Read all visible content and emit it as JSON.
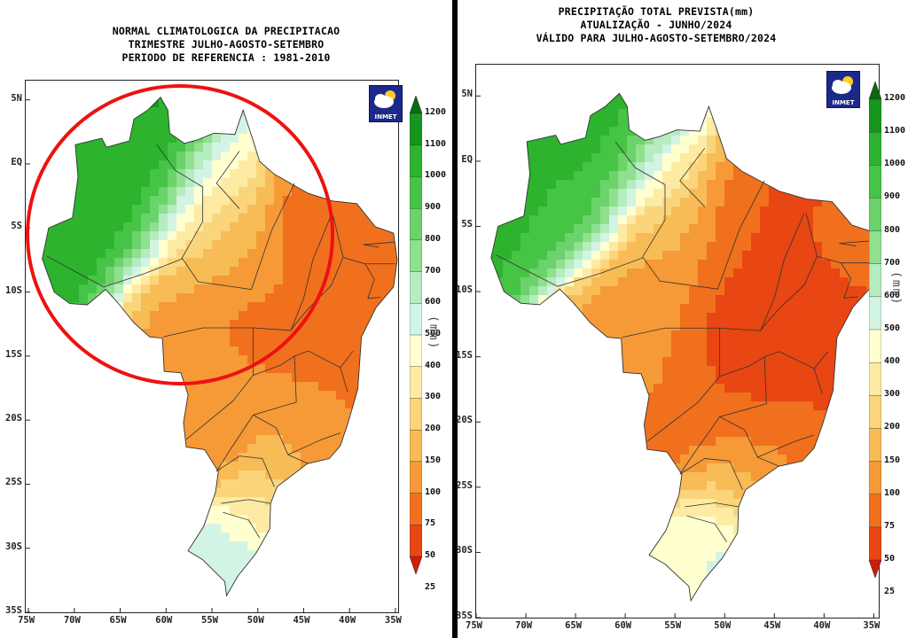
{
  "left_panel": {
    "title_lines": [
      "NORMAL CLIMATOLOGICA DA PRECIPITACAO",
      "TRIMESTRE JULHO-AGOSTO-SETEMBRO",
      "PERIODO DE REFERENCIA : 1981-2010"
    ],
    "logo_text": "INMET",
    "units": "(mm)"
  },
  "right_panel": {
    "title_lines": [
      "PRECIPITAÇÃO TOTAL PREVISTA(mm)",
      "ATUALIZAÇÃO - JUNHO/2024",
      "VÁLIDO PARA JULHO-AGOSTO-SETEMBRO/2024"
    ],
    "logo_text": "INMET",
    "units": "(mm)"
  },
  "lat_labels": [
    "5N",
    "EQ",
    "5S",
    "10S",
    "15S",
    "20S",
    "25S",
    "30S",
    "35S"
  ],
  "lon_labels": [
    "75W",
    "70W",
    "65W",
    "60W",
    "55W",
    "50W",
    "45W",
    "40W",
    "35W"
  ],
  "colorbar": {
    "ticks": [
      "1200",
      "1100",
      "1000",
      "900",
      "800",
      "700",
      "600",
      "500",
      "400",
      "300",
      "200",
      "150",
      "100",
      "75",
      "50",
      "25"
    ],
    "colors": [
      "#0a7a14",
      "#16961e",
      "#2db32d",
      "#46c446",
      "#6bd36b",
      "#8fe08f",
      "#b5ecc0",
      "#d2f4e4",
      "#ffffd0",
      "#fdeaa3",
      "#fbd57c",
      "#f8bc56",
      "#f59a36",
      "#f0701e",
      "#e84612",
      "#de1f0a"
    ],
    "top_arrow_color": "#0a6a10",
    "bottom_arrow_color": "#d41a08"
  },
  "annotation": {
    "color": "#ee1111"
  }
}
